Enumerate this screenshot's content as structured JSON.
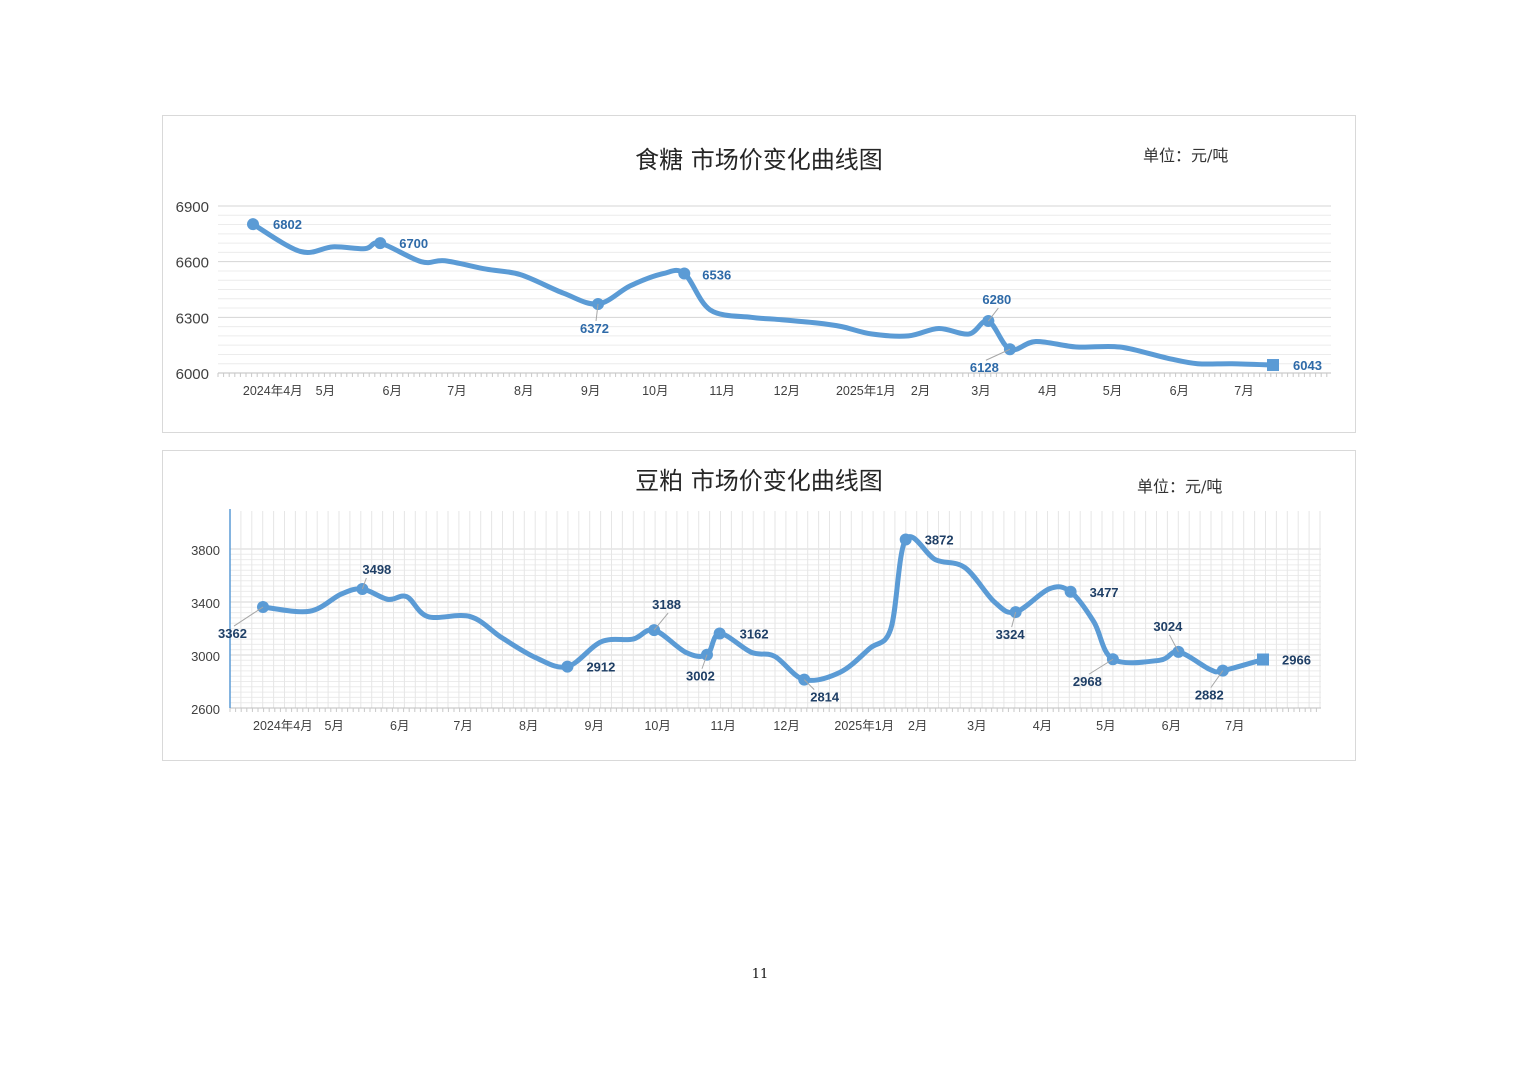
{
  "page_number": "11",
  "chart_data": [
    {
      "type": "line",
      "title": "食糖 市场价变化曲线图",
      "unit": "单位：元/吨",
      "ylim": [
        6000,
        6900
      ],
      "yticks": [
        "6900",
        "6600",
        "6300",
        "6000"
      ],
      "grid": true,
      "line_color": "#5b9bd5",
      "label_color": "#2e6aa8",
      "x_labels": [
        "2024年4月",
        "5月",
        "6月",
        "7月",
        "8月",
        "9月",
        "10月",
        "11月",
        "12月",
        "2025年1月",
        "2月",
        "3月",
        "4月",
        "5月",
        "6月",
        "7月"
      ],
      "series": [
        {
          "points": [
            {
              "x": "2024-04-03",
              "y": 6802,
              "label": "6802"
            },
            {
              "x": "2024-04-25",
              "y": 6655
            },
            {
              "x": "2024-05-10",
              "y": 6680
            },
            {
              "x": "2024-05-25",
              "y": 6670
            },
            {
              "x": "2024-06-01",
              "y": 6700,
              "label": "6700"
            },
            {
              "x": "2024-06-20",
              "y": 6600
            },
            {
              "x": "2024-07-01",
              "y": 6605
            },
            {
              "x": "2024-07-20",
              "y": 6560
            },
            {
              "x": "2024-08-05",
              "y": 6530
            },
            {
              "x": "2024-08-25",
              "y": 6430
            },
            {
              "x": "2024-09-10",
              "y": 6372,
              "label": "6372"
            },
            {
              "x": "2024-09-25",
              "y": 6470
            },
            {
              "x": "2024-10-10",
              "y": 6535
            },
            {
              "x": "2024-10-20",
              "y": 6536,
              "label": "6536"
            },
            {
              "x": "2024-11-01",
              "y": 6340
            },
            {
              "x": "2024-11-20",
              "y": 6300
            },
            {
              "x": "2024-12-01",
              "y": 6290
            },
            {
              "x": "2024-12-20",
              "y": 6270
            },
            {
              "x": "2025-01-01",
              "y": 6250
            },
            {
              "x": "2025-01-15",
              "y": 6210
            },
            {
              "x": "2025-02-01",
              "y": 6200
            },
            {
              "x": "2025-02-15",
              "y": 6240
            },
            {
              "x": "2025-03-01",
              "y": 6210
            },
            {
              "x": "2025-03-10",
              "y": 6280,
              "label": "6280"
            },
            {
              "x": "2025-03-20",
              "y": 6128,
              "label": "6128"
            },
            {
              "x": "2025-04-01",
              "y": 6170
            },
            {
              "x": "2025-04-20",
              "y": 6140
            },
            {
              "x": "2025-05-10",
              "y": 6140
            },
            {
              "x": "2025-06-01",
              "y": 6080
            },
            {
              "x": "2025-06-15",
              "y": 6050
            },
            {
              "x": "2025-07-01",
              "y": 6050
            },
            {
              "x": "2025-07-20",
              "y": 6043,
              "label": "6043"
            }
          ]
        }
      ]
    },
    {
      "type": "line",
      "title": "豆粕 市场价变化曲线图",
      "unit": "单位：元/吨",
      "ylim": [
        2600,
        3800
      ],
      "yticks": [
        "3800",
        "3400",
        "3000",
        "2600"
      ],
      "grid": true,
      "line_color": "#5b9bd5",
      "label_color": "#1f3f66",
      "x_labels": [
        "2024年4月",
        "5月",
        "6月",
        "7月",
        "8月",
        "9月",
        "10月",
        "11月",
        "12月",
        "2025年1月",
        "2月",
        "3月",
        "4月",
        "5月",
        "6月",
        "7月"
      ],
      "series": [
        {
          "points": [
            {
              "x": "2024-04-03",
              "y": 3362,
              "label": "3362"
            },
            {
              "x": "2024-04-25",
              "y": 3330
            },
            {
              "x": "2024-05-10",
              "y": 3460
            },
            {
              "x": "2024-05-20",
              "y": 3498,
              "label": "3498"
            },
            {
              "x": "2024-06-01",
              "y": 3420
            },
            {
              "x": "2024-06-10",
              "y": 3440
            },
            {
              "x": "2024-06-20",
              "y": 3290
            },
            {
              "x": "2024-07-10",
              "y": 3290
            },
            {
              "x": "2024-07-25",
              "y": 3130
            },
            {
              "x": "2024-08-10",
              "y": 2980
            },
            {
              "x": "2024-08-25",
              "y": 2912,
              "label": "2912"
            },
            {
              "x": "2024-09-10",
              "y": 3100
            },
            {
              "x": "2024-09-25",
              "y": 3120
            },
            {
              "x": "2024-10-05",
              "y": 3188,
              "label": "3188"
            },
            {
              "x": "2024-10-20",
              "y": 3020
            },
            {
              "x": "2024-10-30",
              "y": 3002,
              "label": "3002"
            },
            {
              "x": "2024-11-05",
              "y": 3162,
              "label": "3162"
            },
            {
              "x": "2024-11-20",
              "y": 3020
            },
            {
              "x": "2024-12-01",
              "y": 2990
            },
            {
              "x": "2024-12-15",
              "y": 2814,
              "label": "2814"
            },
            {
              "x": "2025-01-01",
              "y": 2870
            },
            {
              "x": "2025-01-15",
              "y": 3050
            },
            {
              "x": "2025-01-25",
              "y": 3200
            },
            {
              "x": "2025-02-01",
              "y": 3872,
              "label": "3872"
            },
            {
              "x": "2025-02-15",
              "y": 3720
            },
            {
              "x": "2025-03-01",
              "y": 3660
            },
            {
              "x": "2025-03-15",
              "y": 3400
            },
            {
              "x": "2025-03-25",
              "y": 3324,
              "label": "3324"
            },
            {
              "x": "2025-04-10",
              "y": 3500
            },
            {
              "x": "2025-04-20",
              "y": 3477,
              "label": "3477"
            },
            {
              "x": "2025-05-01",
              "y": 3250
            },
            {
              "x": "2025-05-10",
              "y": 2968,
              "label": "2968"
            },
            {
              "x": "2025-06-01",
              "y": 2960
            },
            {
              "x": "2025-06-10",
              "y": 3024,
              "label": "3024"
            },
            {
              "x": "2025-06-25",
              "y": 2890
            },
            {
              "x": "2025-07-01",
              "y": 2882,
              "label": "2882"
            },
            {
              "x": "2025-07-20",
              "y": 2966,
              "label": "2966"
            }
          ]
        }
      ]
    }
  ]
}
